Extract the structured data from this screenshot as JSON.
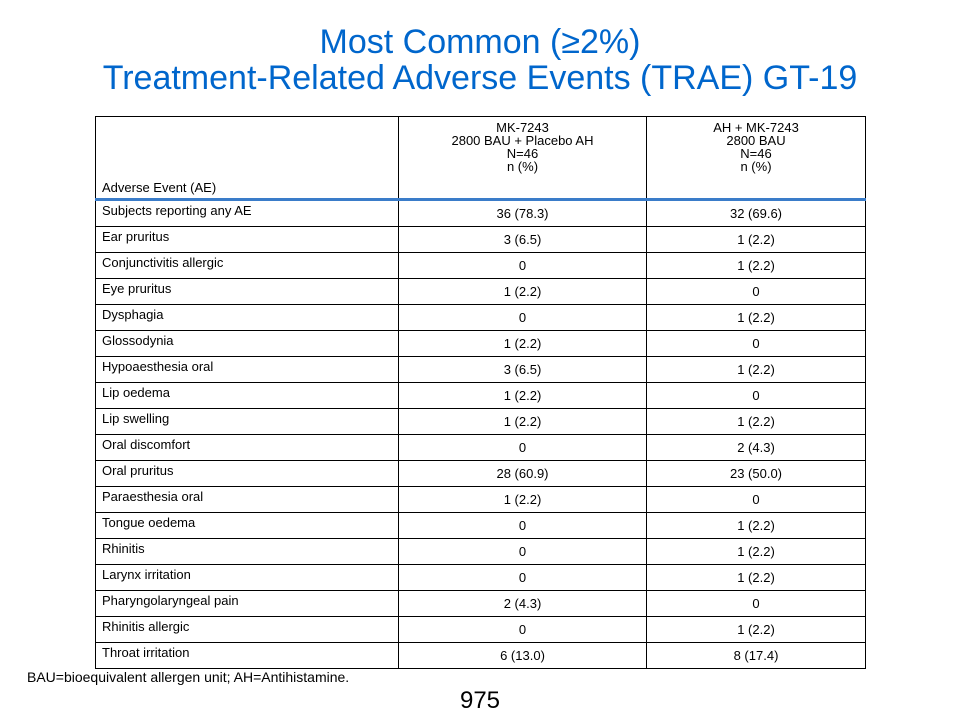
{
  "title": {
    "line1": "Most Common (≥2%)",
    "line2": "Treatment-Related Adverse Events (TRAE) GT-19"
  },
  "table": {
    "header": {
      "ae_label": "Adverse Event (AE)",
      "group1": [
        "MK-7243",
        "2800 BAU + Placebo AH",
        "N=46",
        "n (%)"
      ],
      "group2": [
        "AH + MK-7243",
        "2800 BAU",
        "N=46",
        "n (%)"
      ]
    },
    "rows": [
      {
        "event": "Subjects reporting any AE",
        "group1": "36 (78.3)",
        "group2": "32 (69.6)"
      },
      {
        "event": "Ear pruritus",
        "group1": "3 (6.5)",
        "group2": "1 (2.2)"
      },
      {
        "event": "Conjunctivitis allergic",
        "group1": "0",
        "group2": "1 (2.2)"
      },
      {
        "event": "Eye pruritus",
        "group1": "1 (2.2)",
        "group2": "0"
      },
      {
        "event": "Dysphagia",
        "group1": "0",
        "group2": "1 (2.2)"
      },
      {
        "event": "Glossodynia",
        "group1": "1 (2.2)",
        "group2": "0"
      },
      {
        "event": "Hypoaesthesia oral",
        "group1": "3 (6.5)",
        "group2": "1 (2.2)"
      },
      {
        "event": "Lip oedema",
        "group1": "1 (2.2)",
        "group2": "0"
      },
      {
        "event": "Lip swelling",
        "group1": "1 (2.2)",
        "group2": "1 (2.2)"
      },
      {
        "event": "Oral discomfort",
        "group1": "0",
        "group2": "2 (4.3)"
      },
      {
        "event": "Oral pruritus",
        "group1": "28 (60.9)",
        "group2": "23 (50.0)"
      },
      {
        "event": "Paraesthesia oral",
        "group1": "1 (2.2)",
        "group2": "0"
      },
      {
        "event": "Tongue oedema",
        "group1": "0",
        "group2": "1 (2.2)"
      },
      {
        "event": "Rhinitis",
        "group1": "0",
        "group2": "1 (2.2)"
      },
      {
        "event": "Larynx irritation",
        "group1": "0",
        "group2": "1 (2.2)"
      },
      {
        "event": "Pharyngolaryngeal pain",
        "group1": "2 (4.3)",
        "group2": "0"
      },
      {
        "event": "Rhinitis allergic",
        "group1": "0",
        "group2": "1 (2.2)"
      },
      {
        "event": "Throat irritation",
        "group1": "6 (13.0)",
        "group2": "8 (17.4)"
      }
    ]
  },
  "footnote": "BAU=bioequivalent allergen unit; AH=Antihistamine.",
  "page_number": "975",
  "colors": {
    "title": "#0066cc",
    "header_rule": "#3a7cc9"
  }
}
